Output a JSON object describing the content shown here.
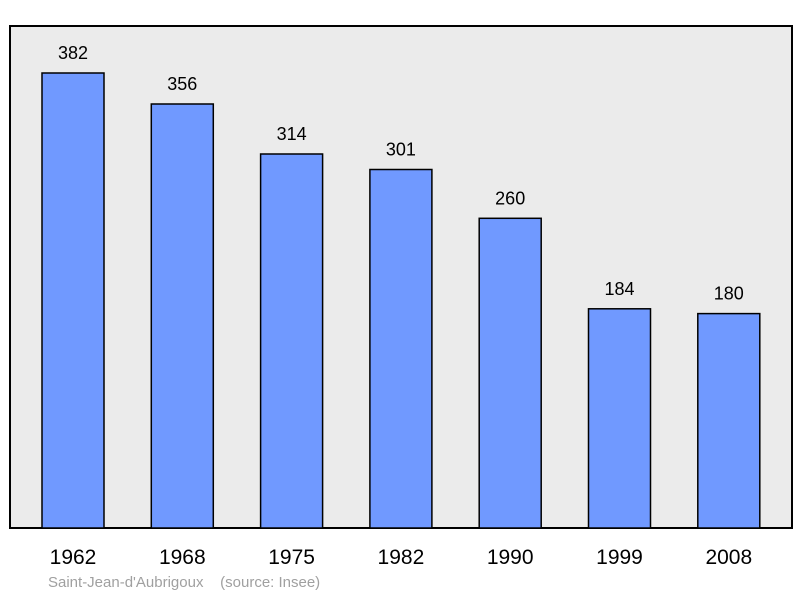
{
  "chart_data": {
    "type": "bar",
    "categories": [
      "1962",
      "1968",
      "1975",
      "1982",
      "1990",
      "1999",
      "2008"
    ],
    "values": [
      382,
      356,
      314,
      301,
      260,
      184,
      180
    ],
    "ylim": [
      0,
      420
    ],
    "grid": false,
    "colors": {
      "bar": "#7099ff",
      "plot_background": "#ebebeb",
      "frame": "#000000"
    }
  },
  "caption": {
    "place": "Saint-Jean-d'Aubrigoux",
    "source": "(source: Insee)"
  }
}
